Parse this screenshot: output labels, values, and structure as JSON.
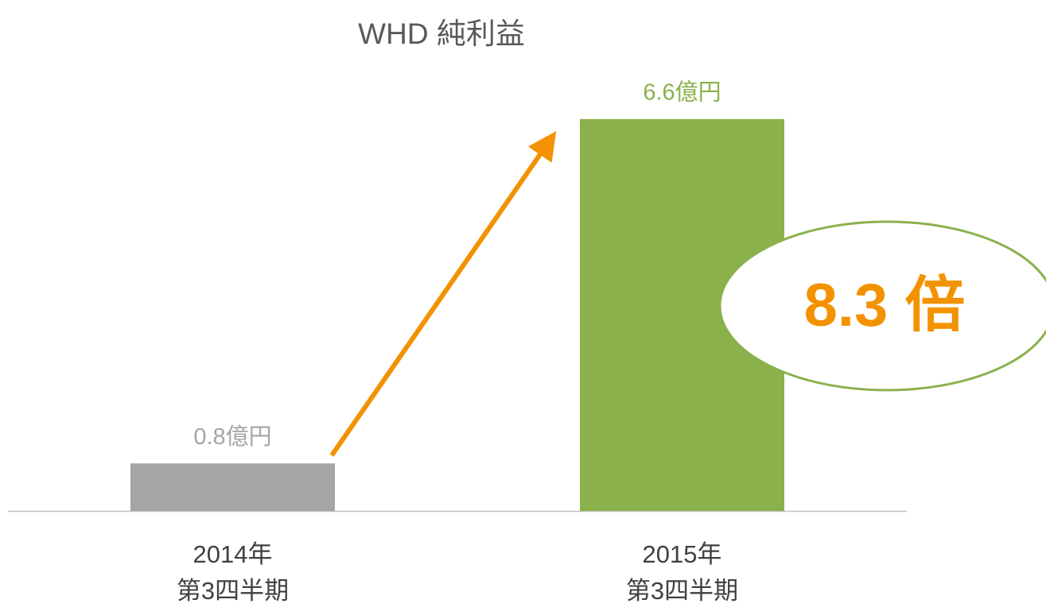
{
  "chart_data": {
    "type": "bar",
    "title": "WHD 純利益",
    "categories": [
      "2014年\n第3四半期",
      "2015年\n第3四半期"
    ],
    "values": [
      0.8,
      6.6
    ],
    "value_labels": [
      "0.8億円",
      "6.6億円"
    ],
    "colors": [
      "#a5a5a5",
      "#8ab14c"
    ],
    "ylim": [
      0,
      7.2
    ],
    "annotation": "8.3 倍",
    "annotation_color": "#f39200",
    "arrow_color": "#f39200",
    "ellipse_color": "#8ab14c"
  }
}
